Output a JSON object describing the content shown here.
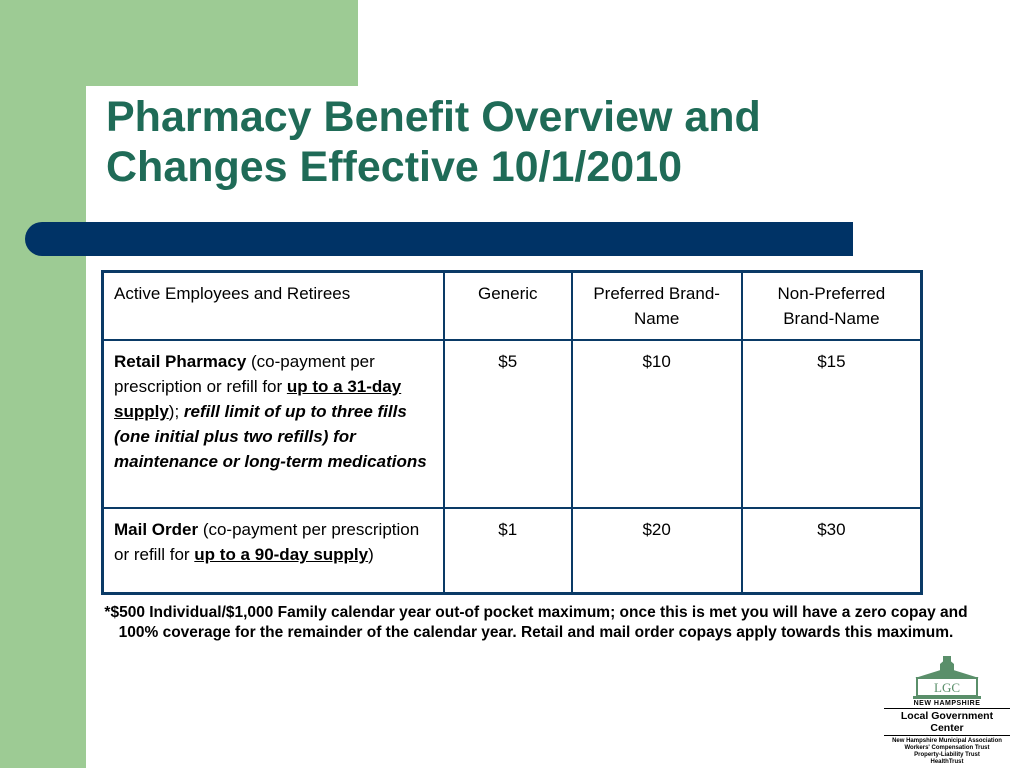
{
  "slide": {
    "title_lines": [
      "Pharmacy Benefit Overview and",
      "Changes Effective 10/1/2010"
    ],
    "colors": {
      "title": "#1f6b57",
      "green": "#9dcb94",
      "navy": "#003366"
    }
  },
  "table": {
    "header": [
      "Active Employees and Retirees",
      "Generic",
      "Preferred Brand-Name",
      "Non-Preferred Brand-Name"
    ],
    "retail": {
      "label": "Retail Pharmacy",
      "text1": " (co-payment per prescription or refill for ",
      "underlined": "up to a 31-day supply",
      "text2": "); ",
      "italic": "refill limit of up to three fills (one initial plus two refills) for maintenance or long-term medications",
      "generic": "$5",
      "preferred": "$10",
      "nonpreferred": "$15"
    },
    "mail": {
      "label": "Mail Order",
      "text1": " (co-payment per prescription or refill for ",
      "underlined": "up to a 90-day supply",
      "text2": ")",
      "generic": "$1",
      "preferred": "$20",
      "nonpreferred": "$30"
    }
  },
  "footnote": "*$500 Individual/$1,000 Family calendar year out-of pocket maximum; once this is met you will have a zero copay and 100% coverage for the remainder of the calendar year.  Retail and mail order copays apply towards this maximum.",
  "logo": {
    "initials": "LGC",
    "state": "NEW HAMPSHIRE",
    "name": "Local Government Center",
    "members": [
      "New Hampshire Municipal Association",
      "Workers' Compensation Trust",
      "Property-Liability Trust",
      "HealthTrust"
    ]
  }
}
